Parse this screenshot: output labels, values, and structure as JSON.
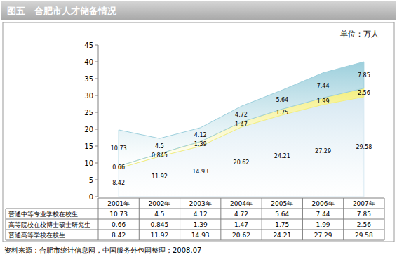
{
  "chart_data": {
    "type": "area",
    "title": "图五　合肥市人才储备情况",
    "y_label": "单位：万人",
    "source": "资料来源：合肥市统计信息网，中国服务外包网整理；2008.07",
    "categories": [
      "2001年",
      "2002年",
      "2003年",
      "2004年",
      "2005年",
      "2006年",
      "2007年"
    ],
    "series": [
      {
        "name": "普通高等学校在校生",
        "color": "#d6e8f2",
        "values": [
          8.42,
          11.92,
          14.93,
          20.62,
          24.21,
          27.29,
          29.58
        ]
      },
      {
        "name": "高等院校在校博士硕士研究生",
        "color": "#f4ef7e",
        "values": [
          0.66,
          0.845,
          1.39,
          1.47,
          1.75,
          1.99,
          2.56
        ]
      },
      {
        "name": "普通中等专业学校在校生",
        "color": "#9ccfdc",
        "values": [
          10.73,
          4.5,
          4.12,
          4.72,
          5.64,
          7.44,
          7.85
        ]
      }
    ],
    "ylim": [
      0,
      45
    ],
    "yticks": [
      0,
      5,
      10,
      15,
      20,
      25,
      30,
      35,
      40,
      45
    ],
    "stacked": true,
    "data_labels": true,
    "grid": false
  }
}
